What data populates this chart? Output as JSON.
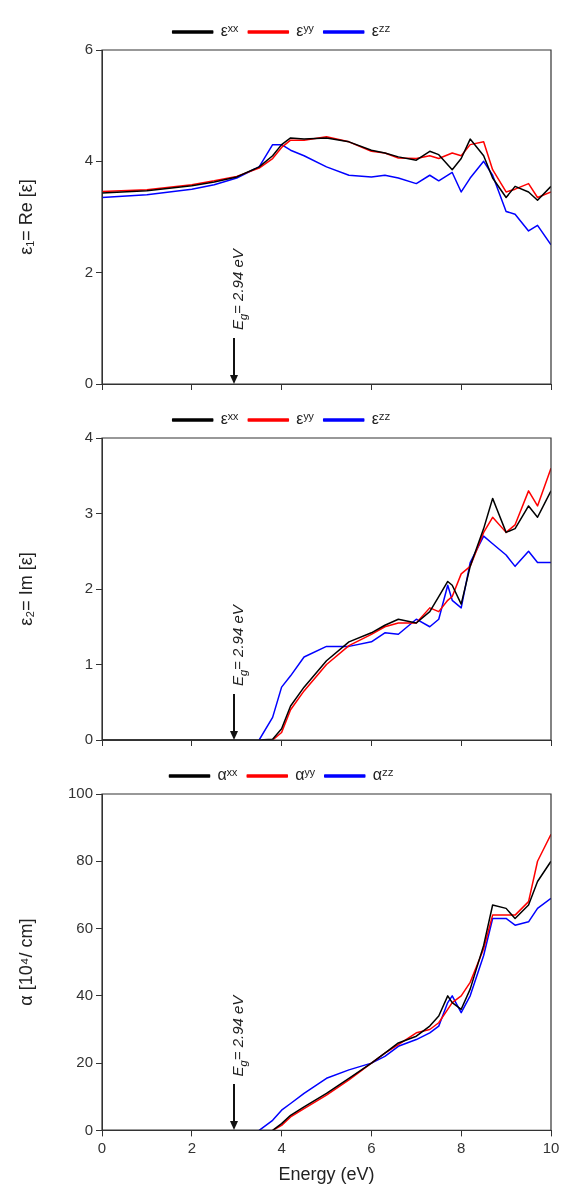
{
  "chart_data": [
    {
      "type": "line",
      "ylabel": "ε₁= Re [ε]",
      "xlim": [
        0,
        10
      ],
      "xticks": [
        0,
        2,
        4,
        6,
        8,
        10
      ],
      "ylim": [
        0,
        6
      ],
      "yticks": [
        0,
        2,
        4,
        6
      ],
      "tick_labels": "y",
      "legend": "top",
      "annotations": [
        "E$_{g}$= 2.94 eV"
      ],
      "x": [
        0,
        1,
        2,
        2.5,
        3,
        3.5,
        3.8,
        4,
        4.2,
        4.5,
        5,
        5.5,
        6,
        6.3,
        6.6,
        7,
        7.3,
        7.5,
        7.8,
        8,
        8.2,
        8.5,
        8.7,
        9,
        9.2,
        9.5,
        9.7,
        10
      ],
      "series": [
        {
          "name": "εˣˣ",
          "color": "#000000",
          "values": [
            3.43,
            3.47,
            3.56,
            3.63,
            3.72,
            3.9,
            4.1,
            4.3,
            4.42,
            4.4,
            4.42,
            4.35,
            4.2,
            4.15,
            4.08,
            4.02,
            4.18,
            4.12,
            3.85,
            4.05,
            4.4,
            4.1,
            3.7,
            3.35,
            3.55,
            3.45,
            3.3,
            3.55
          ]
        },
        {
          "name": "εʸʸ",
          "color": "#ff0000",
          "values": [
            3.46,
            3.49,
            3.58,
            3.65,
            3.73,
            3.88,
            4.05,
            4.25,
            4.38,
            4.38,
            4.44,
            4.35,
            4.18,
            4.15,
            4.06,
            4.05,
            4.1,
            4.05,
            4.15,
            4.1,
            4.3,
            4.35,
            3.85,
            3.45,
            3.5,
            3.6,
            3.35,
            3.45
          ]
        },
        {
          "name": "εᶻᶻ",
          "color": "#0000ff",
          "values": [
            3.35,
            3.4,
            3.5,
            3.58,
            3.7,
            3.9,
            4.3,
            4.3,
            4.2,
            4.1,
            3.9,
            3.75,
            3.72,
            3.75,
            3.7,
            3.6,
            3.75,
            3.65,
            3.8,
            3.45,
            3.7,
            4.0,
            3.75,
            3.1,
            3.05,
            2.75,
            2.85,
            2.5
          ]
        }
      ]
    },
    {
      "type": "line",
      "ylabel": "ε₂= Im [ε]",
      "xlim": [
        0,
        10
      ],
      "xticks": [
        0,
        2,
        4,
        6,
        8,
        10
      ],
      "ylim": [
        0,
        4
      ],
      "yticks": [
        0,
        1,
        2,
        3,
        4
      ],
      "tick_labels": "y",
      "legend": "top",
      "annotations": [
        "E$_{g}$= 2.94 eV"
      ],
      "x": [
        0,
        1,
        2,
        3,
        3.5,
        3.8,
        4,
        4.2,
        4.5,
        5,
        5.5,
        6,
        6.3,
        6.6,
        7,
        7.3,
        7.5,
        7.7,
        7.8,
        8,
        8.2,
        8.5,
        8.7,
        9,
        9.2,
        9.5,
        9.7,
        10
      ],
      "series": [
        {
          "name": "εˣˣ",
          "color": "#000000",
          "values": [
            0,
            0,
            0,
            0,
            0,
            0.01,
            0.15,
            0.45,
            0.7,
            1.05,
            1.3,
            1.42,
            1.52,
            1.6,
            1.55,
            1.7,
            1.9,
            2.1,
            2.05,
            1.8,
            2.3,
            2.8,
            3.2,
            2.75,
            2.8,
            3.1,
            2.95,
            3.3
          ]
        },
        {
          "name": "εʸʸ",
          "color": "#ff0000",
          "values": [
            null,
            null,
            null,
            null,
            null,
            0,
            0.1,
            0.4,
            0.65,
            1.0,
            1.25,
            1.4,
            1.5,
            1.55,
            1.55,
            1.75,
            1.7,
            1.85,
            1.9,
            2.2,
            2.3,
            2.75,
            2.95,
            2.75,
            2.85,
            3.3,
            3.1,
            3.6
          ]
        },
        {
          "name": "εᶻᶻ",
          "color": "#0000ff",
          "values": [
            null,
            null,
            null,
            null,
            0,
            0.3,
            0.7,
            0.85,
            1.1,
            1.24,
            1.24,
            1.3,
            1.42,
            1.4,
            1.6,
            1.5,
            1.6,
            2.05,
            1.85,
            1.75,
            2.35,
            2.7,
            2.6,
            2.45,
            2.3,
            2.5,
            2.35,
            2.35
          ]
        }
      ]
    },
    {
      "type": "line",
      "xlabel": "Energy (eV)",
      "ylabel": "α [10⁴/ cm]",
      "xlim": [
        0,
        10
      ],
      "xticks": [
        0,
        2,
        4,
        6,
        8,
        10
      ],
      "ylim": [
        0,
        100
      ],
      "yticks": [
        0,
        20,
        40,
        60,
        80,
        100
      ],
      "legend": "top",
      "annotations": [
        "E$_{g}$= 2.94 eV"
      ],
      "x": [
        0,
        1,
        2,
        3,
        3.5,
        3.8,
        4,
        4.2,
        4.5,
        5,
        5.5,
        6,
        6.3,
        6.6,
        7,
        7.3,
        7.5,
        7.7,
        7.8,
        8,
        8.2,
        8.5,
        8.7,
        9,
        9.2,
        9.5,
        9.7,
        10
      ],
      "series": [
        {
          "name": "αˣˣ",
          "color": "#000000",
          "values": [
            0,
            0,
            0,
            0,
            0,
            0,
            2,
            4.5,
            7,
            11,
            15.5,
            20,
            23,
            26,
            28,
            31,
            34,
            40,
            38,
            36,
            42,
            55,
            67,
            66,
            63,
            67,
            74,
            80
          ]
        },
        {
          "name": "αʸʸ",
          "color": "#ff0000",
          "values": [
            null,
            null,
            null,
            null,
            null,
            0,
            1.5,
            4,
            6.5,
            10.5,
            15,
            20,
            23,
            25.5,
            29,
            30,
            32,
            36,
            38,
            40,
            44,
            54,
            64,
            64,
            64,
            68,
            80,
            88
          ]
        },
        {
          "name": "αᶻᶻ",
          "color": "#0000ff",
          "values": [
            null,
            null,
            null,
            null,
            0,
            3,
            6,
            8,
            11,
            15.5,
            18,
            20,
            22,
            25,
            27,
            29,
            31,
            38,
            40,
            35,
            40,
            52,
            63,
            63,
            61,
            62,
            66,
            69
          ]
        }
      ]
    }
  ]
}
